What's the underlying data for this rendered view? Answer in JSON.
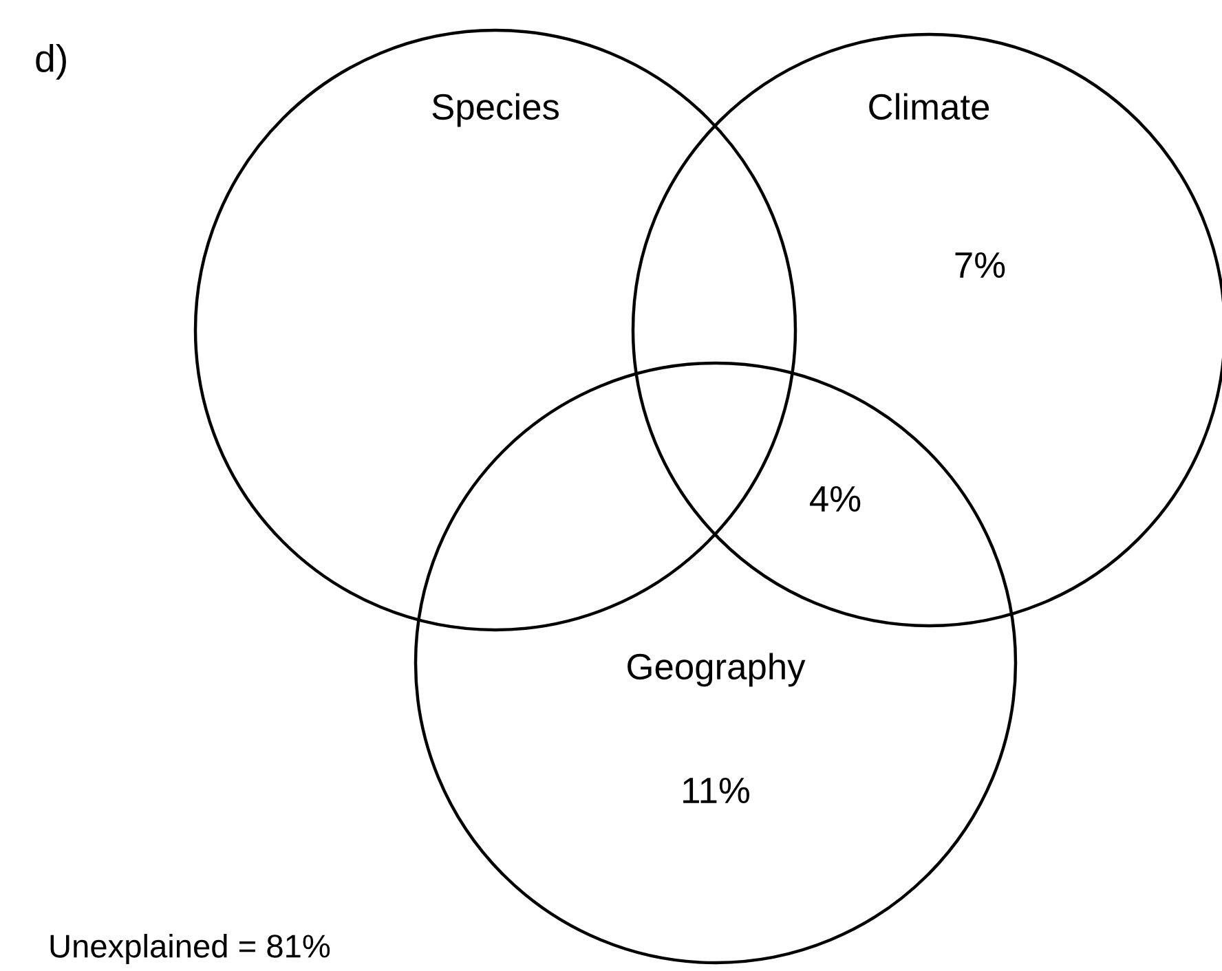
{
  "chart_data": {
    "type": "other",
    "title": "d)",
    "annotations": [
      "Species",
      "Climate",
      "Geography"
    ],
    "categories": [
      null,
      null,
      null,
      null
    ],
    "values": [
      7,
      4,
      11,
      81
    ],
    "value_labels": [
      "7%",
      "4%",
      "11%",
      "Unexplained = 81%"
    ]
  }
}
